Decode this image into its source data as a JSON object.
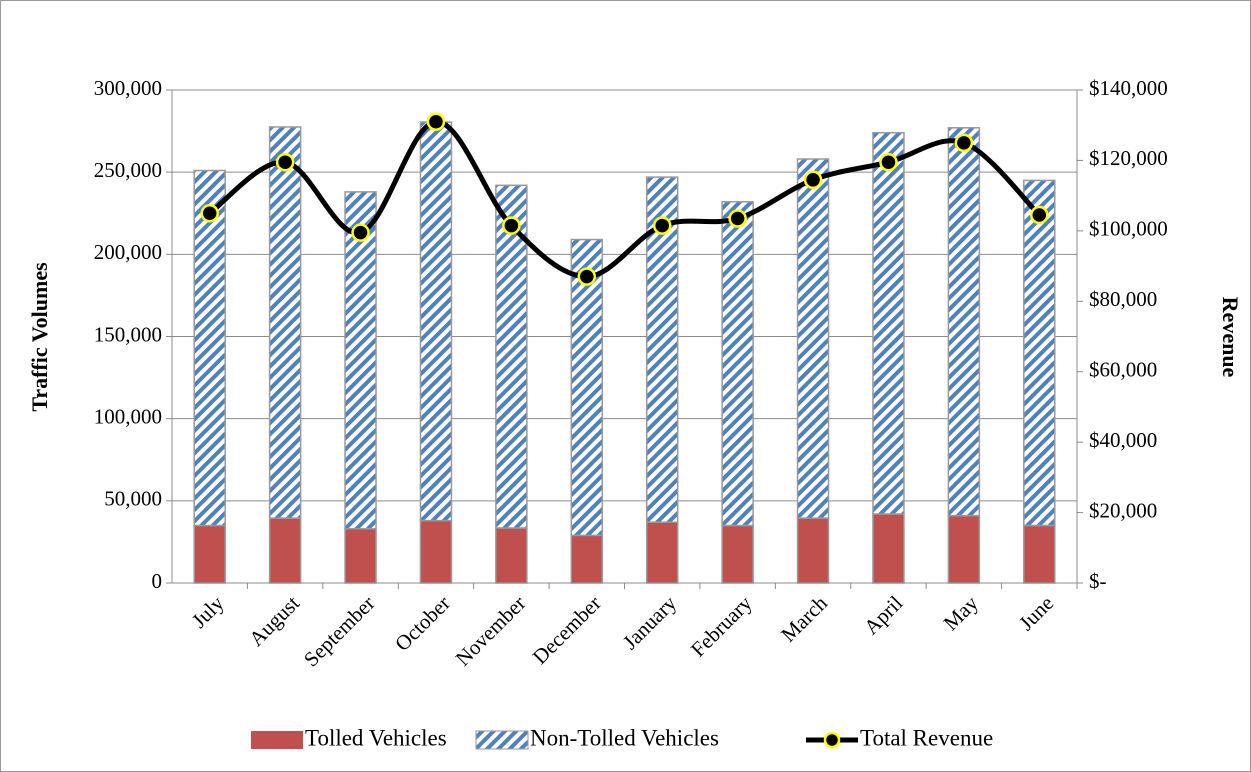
{
  "chart_data": {
    "type": "bar",
    "stacked": true,
    "y_label": "Traffic Volumes",
    "y2_label": "Revenue",
    "categories": [
      "July",
      "August",
      "September",
      "October",
      "November",
      "December",
      "January",
      "February",
      "March",
      "April",
      "May",
      "June"
    ],
    "series": [
      {
        "name": "Tolled Vehicles",
        "type": "bar",
        "color": "#c0504d",
        "values": [
          35000,
          39500,
          33000,
          38000,
          33500,
          29000,
          37000,
          35000,
          39500,
          42000,
          41000,
          35000
        ]
      },
      {
        "name": "Non-Tolled Vehicles",
        "type": "bar",
        "color": "#4f81bd",
        "hatch": true,
        "values": [
          216000,
          238000,
          205000,
          242500,
          208500,
          180000,
          210000,
          197000,
          218500,
          232000,
          236000,
          210000
        ]
      },
      {
        "name": "Total Revenue",
        "type": "line",
        "axis": "y2",
        "color": "#000000",
        "marker_color": "#ffff00",
        "values": [
          105000,
          119500,
          99500,
          131000,
          101500,
          87000,
          101500,
          103500,
          114500,
          119500,
          125000,
          104500
        ]
      }
    ],
    "ylim": [
      0,
      300000
    ],
    "yticks": [
      0,
      {
        "value": 50000,
        "label": "50,000"
      },
      {
        "value": 100000,
        "label": "100,000"
      },
      {
        "value": 150000,
        "label": "150,000"
      },
      {
        "value": 200000,
        "label": "200,000"
      },
      {
        "value": 250000,
        "label": "250,000"
      },
      {
        "value": 300000,
        "label": "300,000"
      }
    ],
    "y2lim": [
      0,
      140000
    ],
    "y2ticks": [
      {
        "value": 0,
        "label": "$-"
      },
      {
        "value": 20000,
        "label": "$20,000"
      },
      {
        "value": 40000,
        "label": "$40,000"
      },
      {
        "value": 60000,
        "label": "$60,000"
      },
      {
        "value": 80000,
        "label": "$80,000"
      },
      {
        "value": 100000,
        "label": "$100,000"
      },
      {
        "value": 120000,
        "label": "$120,000"
      },
      {
        "value": 140000,
        "label": "$140,000"
      }
    ],
    "grid": true,
    "legend": "bottom"
  }
}
